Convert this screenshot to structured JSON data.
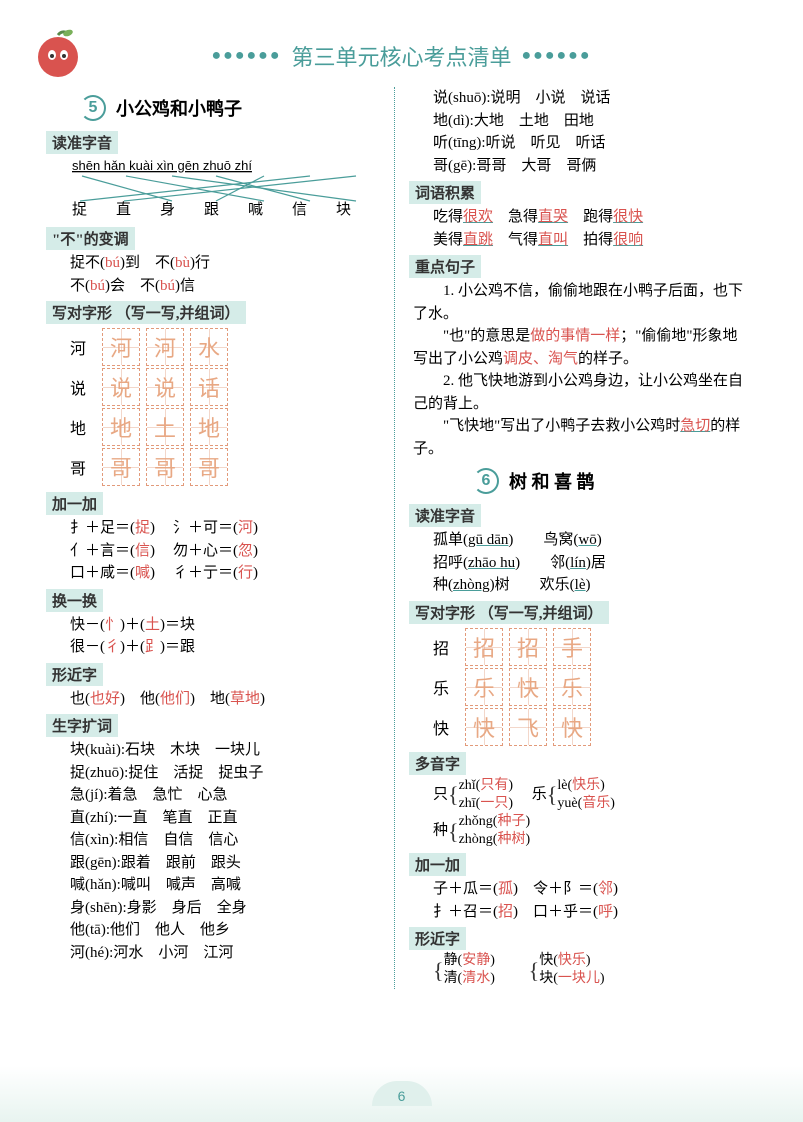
{
  "header": {
    "title": "第三单元核心考点清单",
    "dots": "●●●●●●"
  },
  "l5": {
    "num": "5",
    "title": "小公鸡和小鸭子",
    "sec_pinyin": "读准字音",
    "pinyin": "shēn  hǎn  kuài  xìn  gēn  zhuō  zhí",
    "hanzi": "捉直身跟喊信块",
    "sec_biandiao": "\"不\"的变调",
    "bd1a": "捉不(",
    "bd1b": ")到　不(",
    "bd1c": ")行",
    "bd2a": "不(",
    "bd2b": ")会　不(",
    "bd2c": ")信",
    "bu1": "bú",
    "bu2": "bù",
    "bu3": "bú",
    "bu4": "bú",
    "sec_xieduo": "写对字形 （写一写,并组词）",
    "grid": [
      {
        "l": "河",
        "c": [
          "河",
          "河",
          "水"
        ]
      },
      {
        "l": "说",
        "c": [
          "说",
          "说",
          "话"
        ]
      },
      {
        "l": "地",
        "c": [
          "地",
          "土",
          "地"
        ]
      },
      {
        "l": "哥",
        "c": [
          "哥",
          "哥",
          "哥"
        ]
      }
    ],
    "sec_jia": "加一加",
    "jia": [
      [
        "扌＋足＝(",
        "捉",
        ")",
        "氵＋可＝(",
        "河",
        ")"
      ],
      [
        "亻＋言＝(",
        "信",
        ")",
        "勿＋心＝(",
        "忽",
        ")"
      ],
      [
        "口＋咸＝(",
        "喊",
        ")",
        "彳＋亍＝(",
        "行",
        ")"
      ]
    ],
    "sec_huan": "换一换",
    "huan1a": "快－(",
    "huan1b": ")＋(",
    "huan1c": ")＝块",
    "h1r1": "忄",
    "h1r2": "土",
    "huan2a": "很－(",
    "huan2b": ")＋(",
    "huan2c": ")＝跟",
    "h2r1": "彳",
    "h2r2": "𧾷",
    "sec_xing": "形近字",
    "xing1": "也(",
    "xing1r": "也好",
    "xing2": ")　他(",
    "xing2r": "他们",
    "xing3": ")　地(",
    "xing3r": "草地",
    "xing4": ")",
    "sec_kuo": "生字扩词",
    "kuo": [
      "块(kuài):石块　木块　一块儿",
      "捉(zhuō):捉住　活捉　捉虫子",
      "急(jí):着急　急忙　心急",
      "直(zhí):一直　笔直　正直",
      "信(xìn):相信　自信　信心",
      "跟(gēn):跟着　跟前　跟头",
      "喊(hǎn):喊叫　喊声　高喊",
      "身(shēn):身影　身后　全身",
      "他(tā):他们　他人　他乡",
      "河(hé):河水　小河　江河"
    ]
  },
  "r": {
    "kuo2": [
      "说(shuō):说明　小说　说话",
      "地(dì):大地　土地　田地",
      "听(tīng):听说　听见　听话",
      "哥(gē):哥哥　大哥　哥俩"
    ],
    "sec_ciyu": "词语积累",
    "cy1": [
      "吃得",
      "很欢",
      "　急得",
      "直哭",
      "　跑得",
      "很快"
    ],
    "cy2": [
      "美得",
      "直跳",
      "　气得",
      "直叫",
      "　拍得",
      "很响"
    ],
    "sec_zhong": "重点句子",
    "z1": "1. 小公鸡不信，偷偷地跟在小鸭子后面，也下了水。",
    "z2a": "\"也\"的意思是",
    "z2r1": "做的事情一样",
    "z2b": "；\"偷偷地\"形象地写出了小公鸡",
    "z2r2": "调皮、淘气",
    "z2c": "的样子。",
    "z3": "2. 他飞快地游到小公鸡身边，让小公鸡坐在自己的背上。",
    "z4a": "\"飞快地\"写出了小鸭子去救小公鸡时",
    "z4r": "急切",
    "z4b": "的样子。"
  },
  "l6": {
    "num": "6",
    "title": "树 和 喜 鹊",
    "sec_pinyin": "读准字音",
    "p1a": "孤单(",
    "p1b": ")　　鸟窝(",
    "p1c": ")",
    "p1r1": "gū dān",
    "p1r2": "wō",
    "p2a": "招呼(",
    "p2b": ")　　邻(",
    "p2c": ")居",
    "p2r1": "zhāo hu",
    "p2r2": "lín",
    "p3a": "种(",
    "p3b": ")树　　欢乐(",
    "p3c": ")",
    "p3r1": "zhòng",
    "p3r2": "lè",
    "sec_xieduo": "写对字形 （写一写,并组词）",
    "grid": [
      {
        "l": "招",
        "c": [
          "招",
          "招",
          "手"
        ]
      },
      {
        "l": "乐",
        "c": [
          "乐",
          "快",
          "乐"
        ]
      },
      {
        "l": "快",
        "c": [
          "快",
          "飞",
          "快"
        ]
      }
    ],
    "sec_duo": "多音字",
    "d1l": "只",
    "d1a": "zhǐ(",
    "d1ar": "只有",
    "d1b": "zhī(",
    "d1br": "一只",
    "d2l": "乐",
    "d2a": "lè(",
    "d2ar": "快乐",
    "d2b": "yuè(",
    "d2br": "音乐",
    "d3l": "种",
    "d3a": "zhǒng(",
    "d3ar": "种子",
    "d3b": "zhòng(",
    "d3br": "种树",
    "sec_jia": "加一加",
    "j1": [
      "子＋瓜＝(",
      "孤",
      ")　令＋阝＝(",
      "邻",
      ")"
    ],
    "j2": [
      "扌＋召＝(",
      "招",
      ")　口＋乎＝(",
      "呼",
      ")"
    ],
    "sec_xing": "形近字",
    "x1a": "静(",
    "x1ar": "安静",
    "x1b": "清(",
    "x1br": "清水",
    "x2a": "快(",
    "x2ar": "快乐",
    "x2b": "块(",
    "x2br": "一块儿"
  },
  "pageNum": "6",
  "colors": {
    "accent": "#4a9d9a",
    "red": "#d9534f",
    "trace": "#e8a884"
  }
}
